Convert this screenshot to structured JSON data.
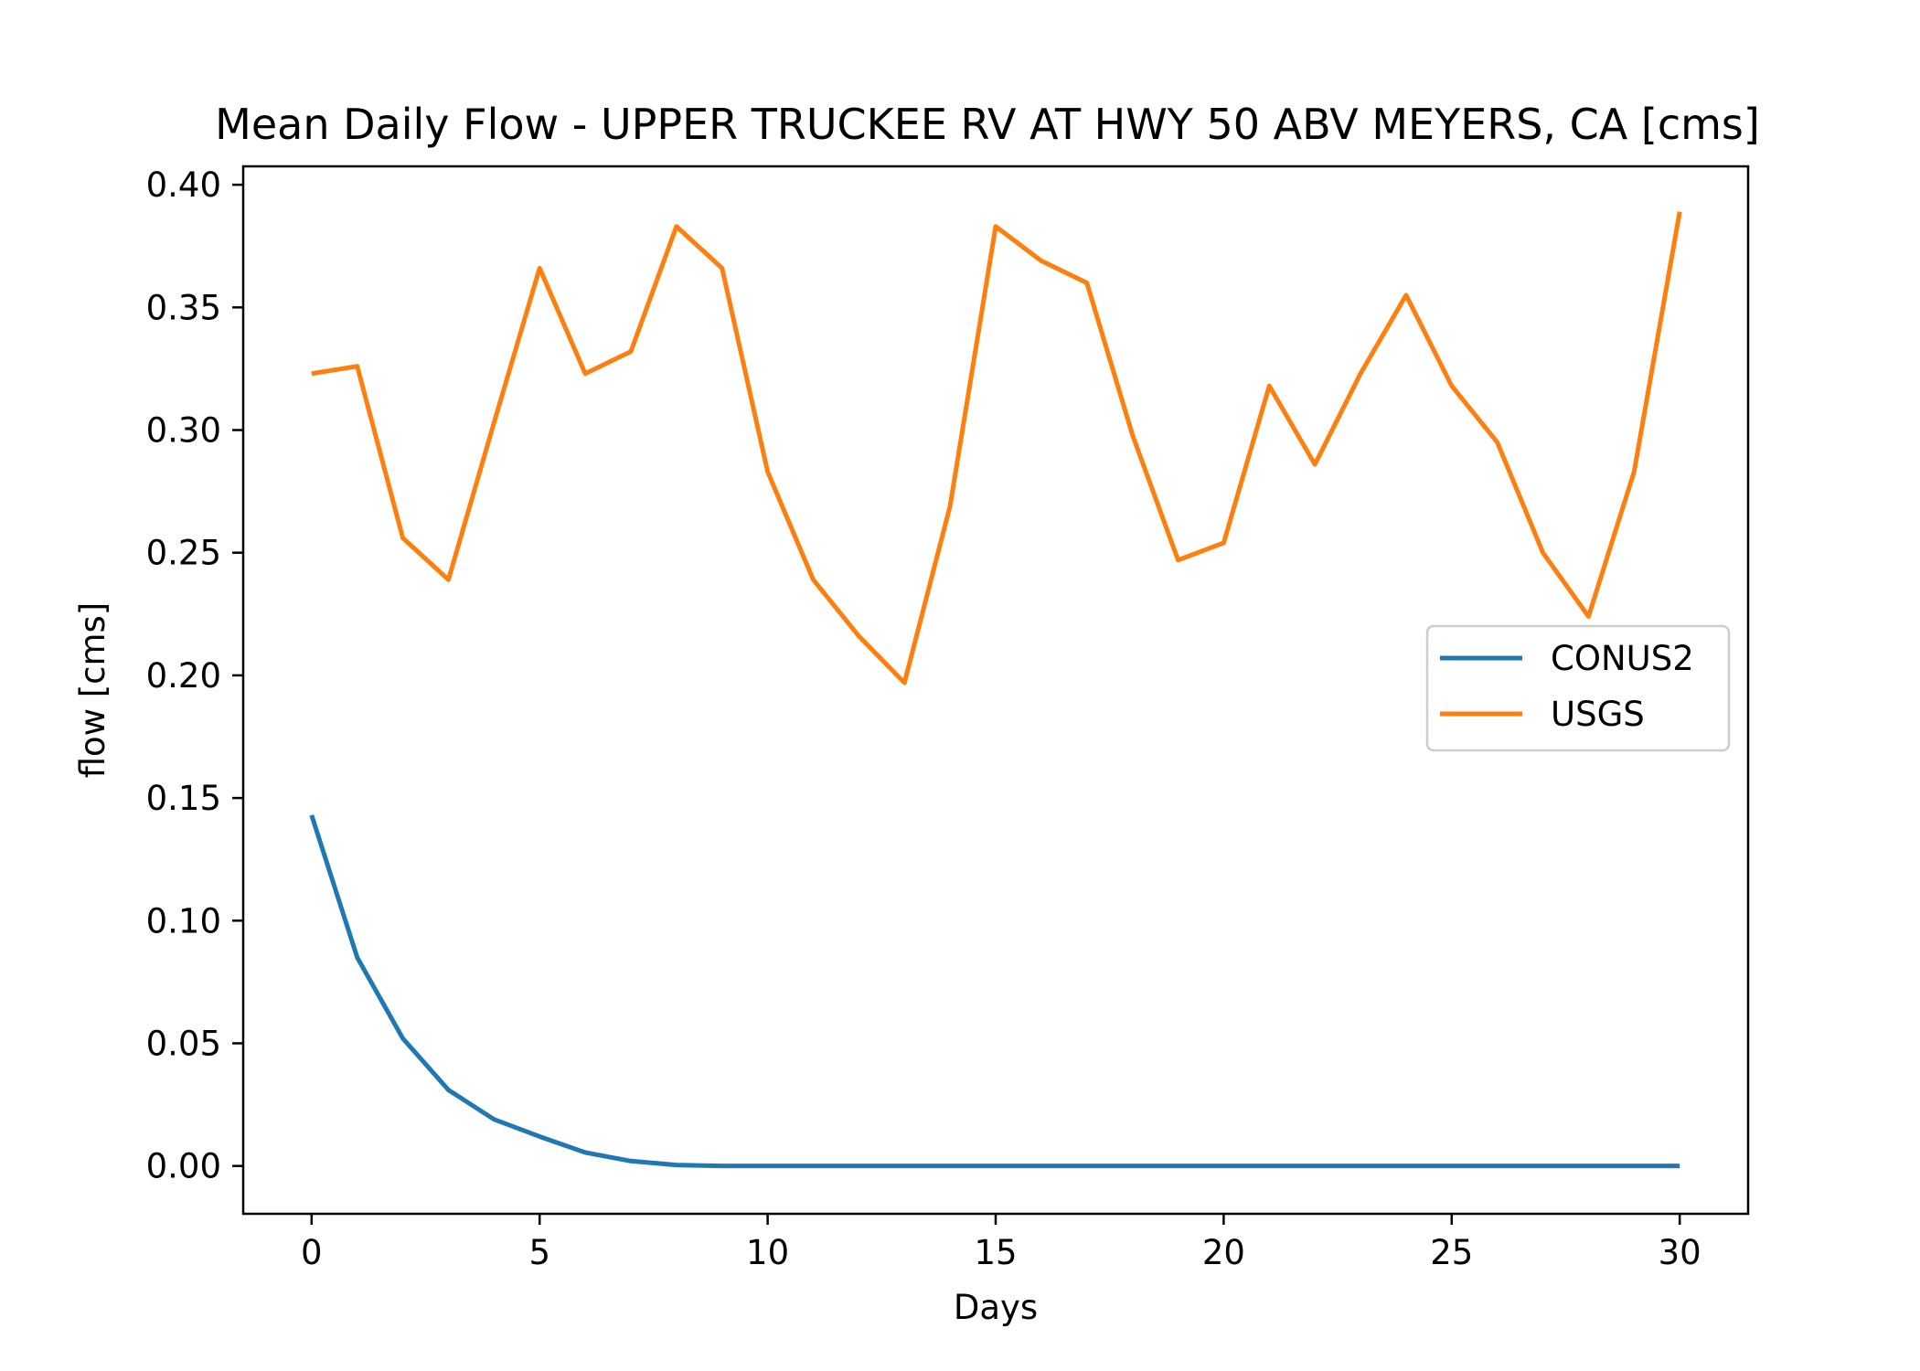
{
  "chart_data": {
    "type": "line",
    "title": "Mean Daily Flow - UPPER TRUCKEE RV AT HWY 50 ABV MEYERS, CA [cms]",
    "xlabel": "Days",
    "ylabel": "flow [cms]",
    "xlim": [
      -1.5,
      31.5
    ],
    "ylim": [
      -0.0195,
      0.4075
    ],
    "xticks": [
      0,
      5,
      10,
      15,
      20,
      25,
      30
    ],
    "xtick_labels": [
      "0",
      "5",
      "10",
      "15",
      "20",
      "25",
      "30"
    ],
    "yticks": [
      0,
      0.05,
      0.1,
      0.15,
      0.2,
      0.25,
      0.3,
      0.35,
      0.4
    ],
    "ytick_labels": [
      "0.00",
      "0.05",
      "0.10",
      "0.15",
      "0.20",
      "0.25",
      "0.30",
      "0.35",
      "0.40"
    ],
    "grid": false,
    "legend_position": "center-right",
    "x": [
      0,
      1,
      2,
      3,
      4,
      5,
      6,
      7,
      8,
      9,
      10,
      11,
      12,
      13,
      14,
      15,
      16,
      17,
      18,
      19,
      20,
      21,
      22,
      23,
      24,
      25,
      26,
      27,
      28,
      29,
      30
    ],
    "series": [
      {
        "name": "CONUS2",
        "color": "#1f77b4",
        "values": [
          0.143,
          0.085,
          0.052,
          0.031,
          0.019,
          0.012,
          0.0055,
          0.002,
          0.0004,
          0,
          0,
          0,
          0,
          0,
          0,
          0,
          0,
          0,
          0,
          0,
          0,
          0,
          0,
          0,
          0,
          0,
          0,
          0,
          0,
          0,
          0
        ]
      },
      {
        "name": "USGS",
        "color": "#ff7f0e",
        "values": [
          0.323,
          0.326,
          0.256,
          0.239,
          0.303,
          0.366,
          0.323,
          0.332,
          0.383,
          0.366,
          0.283,
          0.239,
          0.216,
          0.197,
          0.269,
          0.383,
          0.369,
          0.36,
          0.298,
          0.247,
          0.254,
          0.318,
          0.286,
          0.323,
          0.355,
          0.318,
          0.295,
          0.25,
          0.224,
          0.283,
          0.389
        ]
      }
    ]
  }
}
